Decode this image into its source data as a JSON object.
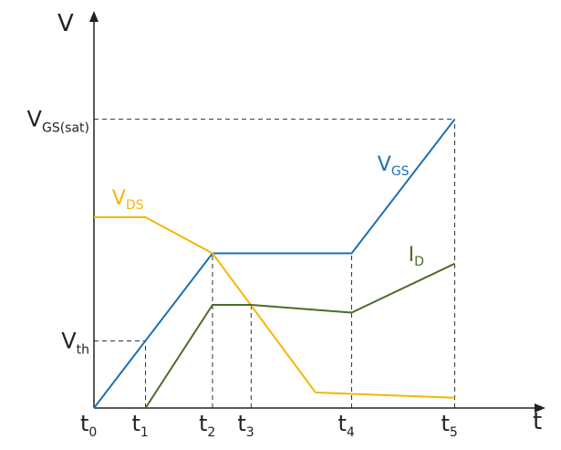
{
  "chart_data": {
    "type": "line",
    "title": "",
    "xlabel": "t",
    "ylabel": "V",
    "x_ticks": [
      {
        "name": "t0",
        "main": "t",
        "sub": "0",
        "x": 0
      },
      {
        "name": "t1",
        "main": "t",
        "sub": "1",
        "x": 1
      },
      {
        "name": "t2",
        "main": "t",
        "sub": "2",
        "x": 2.3
      },
      {
        "name": "t3",
        "main": "t",
        "sub": "3",
        "x": 3.05
      },
      {
        "name": "t4",
        "main": "t",
        "sub": "4",
        "x": 5
      },
      {
        "name": "t5",
        "main": "t",
        "sub": "5",
        "x": 7
      }
    ],
    "y_ticks": [
      {
        "name": "vth",
        "main": "V",
        "sub": "th",
        "y": 1.3
      },
      {
        "name": "vgs-sat",
        "main": "V",
        "sub": "GS(sat)",
        "y": 5.6
      }
    ],
    "xlim": [
      0,
      8.6
    ],
    "ylim": [
      0,
      7.5
    ],
    "grid": false,
    "series": [
      {
        "name": "VGS",
        "main": "V",
        "sub": "GS",
        "color": "#1f6fb2",
        "points": [
          [
            0,
            0
          ],
          [
            2.3,
            3.0
          ],
          [
            5,
            3.0
          ],
          [
            7,
            5.6
          ]
        ],
        "label_at": [
          5.5,
          4.6
        ]
      },
      {
        "name": "VDS",
        "main": "V",
        "sub": "DS",
        "color": "#f2b705",
        "points": [
          [
            0,
            3.7
          ],
          [
            1,
            3.7
          ],
          [
            2.3,
            3.0
          ],
          [
            4.3,
            0.3
          ],
          [
            7,
            0.2
          ]
        ],
        "label_at": [
          0.35,
          3.95
        ]
      },
      {
        "name": "ID",
        "main": "I",
        "sub": "D",
        "color": "#4d6b2a",
        "points": [
          [
            1,
            0
          ],
          [
            2.3,
            2.0
          ],
          [
            3.05,
            2.0
          ],
          [
            5,
            1.85
          ],
          [
            7,
            2.8
          ]
        ],
        "label_at": [
          6.1,
          2.85
        ]
      }
    ],
    "guides": [
      {
        "name": "guide-t1",
        "x": 1,
        "y": 1.3
      },
      {
        "name": "guide-t2",
        "x": 2.3,
        "y": 3.0
      },
      {
        "name": "guide-t3",
        "x": 3.05,
        "y": 2.0
      },
      {
        "name": "guide-t4",
        "x": 5,
        "y": 3.0
      },
      {
        "name": "guide-t5",
        "x": 7,
        "y": 5.6
      }
    ],
    "h_guides": [
      {
        "name": "guide-vth",
        "y": 1.3,
        "x_to": 1
      },
      {
        "name": "guide-vgs-sat",
        "y": 5.6,
        "x_to": 7
      }
    ]
  }
}
